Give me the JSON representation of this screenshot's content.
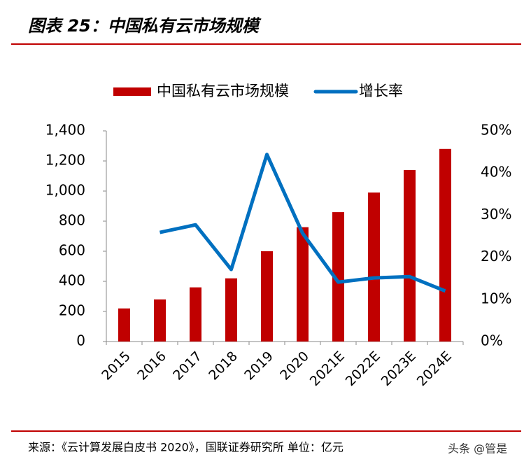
{
  "header": {
    "title": "图表 25：中国私有云市场规模"
  },
  "chart_data": {
    "type": "bar-line",
    "categories": [
      "2015",
      "2016",
      "2017",
      "2018",
      "2019",
      "2020",
      "2021E",
      "2022E",
      "2023E",
      "2024E"
    ],
    "series": [
      {
        "name": "中国私有云市场规模",
        "type": "bar",
        "color": "#c00000",
        "values": [
          220,
          280,
          360,
          420,
          600,
          760,
          860,
          990,
          1140,
          1280
        ]
      },
      {
        "name": "增长率",
        "type": "line",
        "axis": "y2",
        "color": "#0070c0",
        "values": [
          null,
          25.9,
          27.7,
          17.1,
          44.4,
          25.7,
          14.1,
          15.1,
          15.4,
          12.0
        ]
      }
    ],
    "ylim": [
      0,
      1400
    ],
    "yticks": [
      0,
      200,
      400,
      600,
      800,
      {
        "value": 1000,
        "label": "1,000"
      },
      {
        "value": 1200,
        "label": "1,200"
      },
      {
        "value": 1400,
        "label": "1,400"
      }
    ],
    "y2lim": [
      0,
      50
    ],
    "y2ticks": [
      {
        "value": 0,
        "label": "0%"
      },
      {
        "value": 10,
        "label": "10%"
      },
      {
        "value": 20,
        "label": "20%"
      },
      {
        "value": 30,
        "label": "30%"
      },
      {
        "value": 40,
        "label": "40%"
      },
      {
        "value": 50,
        "label": "50%"
      }
    ],
    "legend": "top"
  },
  "footer": {
    "source": "来源：《云计算发展白皮书 2020》，国联证券研究所 单位：亿元",
    "watermark": "头条 @管是"
  }
}
